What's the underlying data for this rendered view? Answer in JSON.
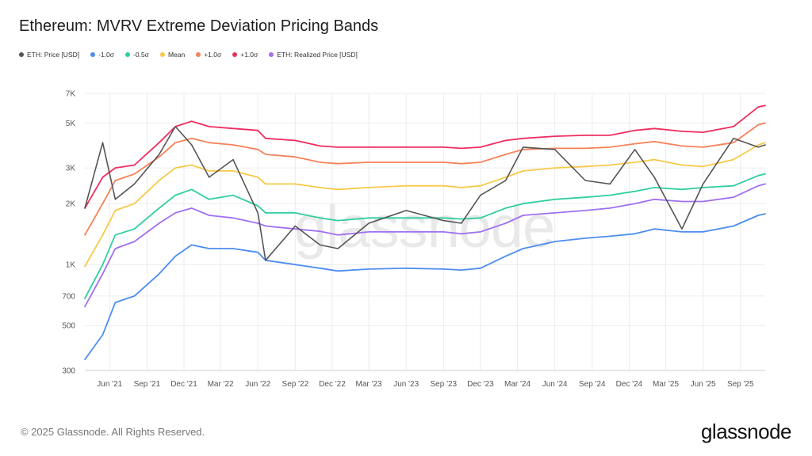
{
  "title": "Ethereum: MVRV Extreme Deviation Pricing Bands",
  "copyright": "© 2025 Glassnode. All Rights Reserved.",
  "brand": "glassnode",
  "watermark": "glassnode",
  "legend": [
    {
      "label": "ETH: Price [USD]",
      "color": "#555555"
    },
    {
      "label": "-1.0σ",
      "color": "#4c8df0"
    },
    {
      "label": "-0.5σ",
      "color": "#2fcea0"
    },
    {
      "label": "Mean",
      "color": "#f7c948"
    },
    {
      "label": "+1.0σ",
      "color": "#f5825a"
    },
    {
      "label": "+1.0σ",
      "color": "#ef2d5e"
    },
    {
      "label": "ETH: Realized Price [USD]",
      "color": "#a070f0"
    }
  ],
  "chart_data": {
    "type": "line",
    "title": "Ethereum: MVRV Extreme Deviation Pricing Bands",
    "y_scale": "log",
    "ylim": [
      300,
      7000
    ],
    "y_ticks": [
      300,
      500,
      700,
      1000,
      2000,
      3000,
      5000,
      7000
    ],
    "y_tick_labels": [
      "300",
      "500",
      "700",
      "1K",
      "2K",
      "3K",
      "5K",
      "7K"
    ],
    "xlim": [
      "2021-04-01",
      "2025-11-01"
    ],
    "x_ticks": [
      "2021-06-01",
      "2021-09-01",
      "2021-12-01",
      "2022-03-01",
      "2022-06-01",
      "2022-09-01",
      "2022-12-01",
      "2023-03-01",
      "2023-06-01",
      "2023-09-01",
      "2023-12-01",
      "2024-03-01",
      "2024-06-01",
      "2024-09-01",
      "2024-12-01",
      "2025-03-01",
      "2025-06-01",
      "2025-09-01"
    ],
    "x_tick_labels": [
      "Jun '21",
      "Sep '21",
      "Dec '21",
      "Mar '22",
      "Jun '22",
      "Sep '22",
      "Dec '22",
      "Mar '23",
      "Jun '23",
      "Sep '23",
      "Dec '23",
      "Mar '24",
      "Jun '24",
      "Sep '24",
      "Dec '24",
      "Mar '25",
      "Jun '25",
      "Sep '25"
    ],
    "grid": true,
    "legend_position": "top-left",
    "x": [
      "2021-04-01",
      "2021-05-15",
      "2021-06-15",
      "2021-08-01",
      "2021-10-01",
      "2021-11-10",
      "2021-12-20",
      "2022-02-01",
      "2022-04-01",
      "2022-06-01",
      "2022-06-20",
      "2022-09-01",
      "2022-11-01",
      "2022-12-15",
      "2023-03-01",
      "2023-06-01",
      "2023-09-01",
      "2023-10-15",
      "2023-12-01",
      "2024-02-01",
      "2024-03-15",
      "2024-06-01",
      "2024-08-15",
      "2024-10-15",
      "2024-12-15",
      "2025-02-01",
      "2025-04-10",
      "2025-06-01",
      "2025-08-15",
      "2025-10-15",
      "2025-11-01"
    ],
    "series": [
      {
        "name": "ETH: Price [USD]",
        "color": "#555555",
        "values": [
          1900,
          4000,
          2100,
          2500,
          3500,
          4800,
          3900,
          2700,
          3300,
          1800,
          1050,
          1550,
          1250,
          1200,
          1600,
          1850,
          1650,
          1600,
          2200,
          2600,
          3800,
          3700,
          2600,
          2500,
          3700,
          2700,
          1500,
          2500,
          4200,
          3800,
          3900
        ]
      },
      {
        "name": "-1.0σ",
        "color": "#4c8df0",
        "values": [
          340,
          450,
          650,
          700,
          900,
          1100,
          1250,
          1200,
          1200,
          1150,
          1050,
          1000,
          960,
          930,
          950,
          960,
          950,
          940,
          960,
          1100,
          1200,
          1300,
          1350,
          1380,
          1420,
          1500,
          1450,
          1450,
          1550,
          1750,
          1780
        ]
      },
      {
        "name": "-0.5σ",
        "color": "#2fcea0",
        "values": [
          680,
          1000,
          1400,
          1500,
          1900,
          2200,
          2350,
          2100,
          2200,
          1950,
          1800,
          1800,
          1700,
          1650,
          1700,
          1700,
          1700,
          1680,
          1700,
          1900,
          2000,
          2100,
          2150,
          2200,
          2300,
          2400,
          2350,
          2400,
          2450,
          2750,
          2800
        ]
      },
      {
        "name": "Mean",
        "color": "#f7c948",
        "values": [
          980,
          1400,
          1850,
          2000,
          2600,
          3000,
          3100,
          2900,
          2900,
          2700,
          2500,
          2500,
          2400,
          2350,
          2400,
          2450,
          2450,
          2400,
          2450,
          2700,
          2900,
          3000,
          3050,
          3100,
          3200,
          3300,
          3100,
          3050,
          3300,
          3900,
          4000
        ]
      },
      {
        "name": "+1.0σ",
        "color": "#f5825a",
        "values": [
          1400,
          2000,
          2600,
          2800,
          3400,
          4000,
          4200,
          4000,
          3900,
          3700,
          3500,
          3400,
          3200,
          3150,
          3200,
          3200,
          3200,
          3150,
          3200,
          3500,
          3700,
          3750,
          3750,
          3800,
          3950,
          4050,
          3850,
          3800,
          4000,
          4900,
          5000
        ]
      },
      {
        "name": "+1.0σ",
        "color": "#ef2d5e",
        "values": [
          1900,
          2700,
          3000,
          3100,
          4000,
          4800,
          5100,
          4800,
          4700,
          4600,
          4200,
          4100,
          3850,
          3800,
          3800,
          3800,
          3800,
          3750,
          3800,
          4100,
          4200,
          4300,
          4350,
          4350,
          4600,
          4700,
          4550,
          4500,
          4800,
          6000,
          6100
        ]
      },
      {
        "name": "ETH: Realized Price [USD]",
        "color": "#a070f0",
        "values": [
          620,
          900,
          1200,
          1300,
          1600,
          1800,
          1900,
          1750,
          1700,
          1600,
          1550,
          1500,
          1460,
          1400,
          1450,
          1450,
          1450,
          1420,
          1450,
          1600,
          1750,
          1800,
          1850,
          1900,
          2000,
          2100,
          2050,
          2050,
          2150,
          2450,
          2500
        ]
      }
    ]
  }
}
